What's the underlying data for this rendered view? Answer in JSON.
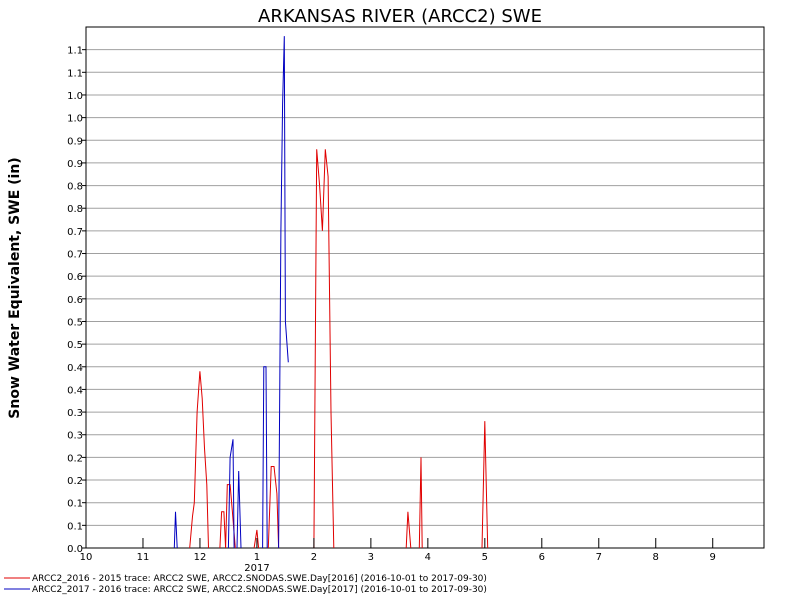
{
  "chart_data": {
    "type": "line",
    "title": "ARKANSAS RIVER (ARCC2) SWE",
    "xlabel": "",
    "ylabel": "Snow Water Equivalent, SWE (in)",
    "x_year_label": "2017",
    "x_tick_labels": [
      "10",
      "11",
      "12",
      "1",
      "2",
      "3",
      "4",
      "5",
      "6",
      "7",
      "8",
      "9"
    ],
    "y_tick_labels": [
      "0.0",
      "0.1",
      "0.1",
      "0.2",
      "0.2",
      "0.3",
      "0.3",
      "0.4",
      "0.4",
      "0.5",
      "0.5",
      "0.6",
      "0.6",
      "0.7",
      "0.7",
      "0.8",
      "0.8",
      "0.9",
      "0.9",
      "1.0",
      "1.0",
      "1.1",
      "1.1"
    ],
    "ylim": [
      0,
      1.15
    ],
    "xlim": [
      10,
      21.9
    ],
    "grid": true,
    "legend_position": "bottom",
    "series": [
      {
        "name": "ARCC2_2016 - 2015 trace: ARCC2 SWE, ARCC2.SNODAS.SWE.Day[2016] (2016-10-01 to 2017-09-30)",
        "color": "#e00000",
        "segments": [
          [
            [
              11.82,
              0.0
            ],
            [
              11.87,
              0.07
            ],
            [
              11.9,
              0.1
            ],
            [
              11.95,
              0.3
            ],
            [
              12.0,
              0.39
            ],
            [
              12.04,
              0.33
            ],
            [
              12.08,
              0.22
            ],
            [
              12.12,
              0.14
            ],
            [
              12.15,
              0.0
            ]
          ],
          [
            [
              12.35,
              0.0
            ],
            [
              12.38,
              0.08
            ],
            [
              12.42,
              0.08
            ],
            [
              12.45,
              0.0
            ]
          ],
          [
            [
              12.45,
              0.0
            ],
            [
              12.48,
              0.14
            ],
            [
              12.53,
              0.14
            ],
            [
              12.57,
              0.08
            ],
            [
              12.62,
              0.0
            ]
          ],
          [
            [
              12.95,
              0.0
            ],
            [
              13.0,
              0.04
            ],
            [
              13.03,
              0.0
            ]
          ],
          [
            [
              13.2,
              0.0
            ],
            [
              13.25,
              0.18
            ],
            [
              13.3,
              0.18
            ],
            [
              13.35,
              0.12
            ],
            [
              13.38,
              0.0
            ]
          ],
          [
            [
              14.0,
              0.0
            ],
            [
              14.05,
              0.88
            ],
            [
              14.1,
              0.8
            ],
            [
              14.15,
              0.7
            ],
            [
              14.2,
              0.88
            ],
            [
              14.25,
              0.82
            ],
            [
              14.3,
              0.3
            ],
            [
              14.35,
              0.0
            ]
          ],
          [
            [
              15.62,
              0.0
            ],
            [
              15.65,
              0.08
            ],
            [
              15.7,
              0.0
            ]
          ],
          [
            [
              15.85,
              0.0
            ],
            [
              15.88,
              0.2
            ],
            [
              15.9,
              0.0
            ]
          ],
          [
            [
              16.95,
              0.0
            ],
            [
              17.0,
              0.28
            ],
            [
              17.05,
              0.0
            ]
          ]
        ]
      },
      {
        "name": "ARCC2_2017 - 2016 trace: ARCC2 SWE, ARCC2.SNODAS.SWE.Day[2017] (2016-10-01 to 2017-09-30)",
        "color": "#0000c0",
        "segments": [
          [
            [
              11.55,
              0.0
            ],
            [
              11.57,
              0.08
            ],
            [
              11.6,
              0.0
            ]
          ],
          [
            [
              12.5,
              0.0
            ],
            [
              12.53,
              0.2
            ],
            [
              12.58,
              0.24
            ],
            [
              12.6,
              0.0
            ]
          ],
          [
            [
              12.65,
              0.0
            ],
            [
              12.68,
              0.17
            ],
            [
              12.72,
              0.0
            ]
          ],
          [
            [
              13.1,
              0.0
            ],
            [
              13.12,
              0.4
            ],
            [
              13.16,
              0.4
            ],
            [
              13.18,
              0.0
            ]
          ],
          [
            [
              13.38,
              0.0
            ],
            [
              13.42,
              0.7
            ],
            [
              13.45,
              0.98
            ],
            [
              13.48,
              1.13
            ],
            [
              13.5,
              0.5
            ],
            [
              13.55,
              0.41
            ]
          ]
        ]
      }
    ]
  }
}
